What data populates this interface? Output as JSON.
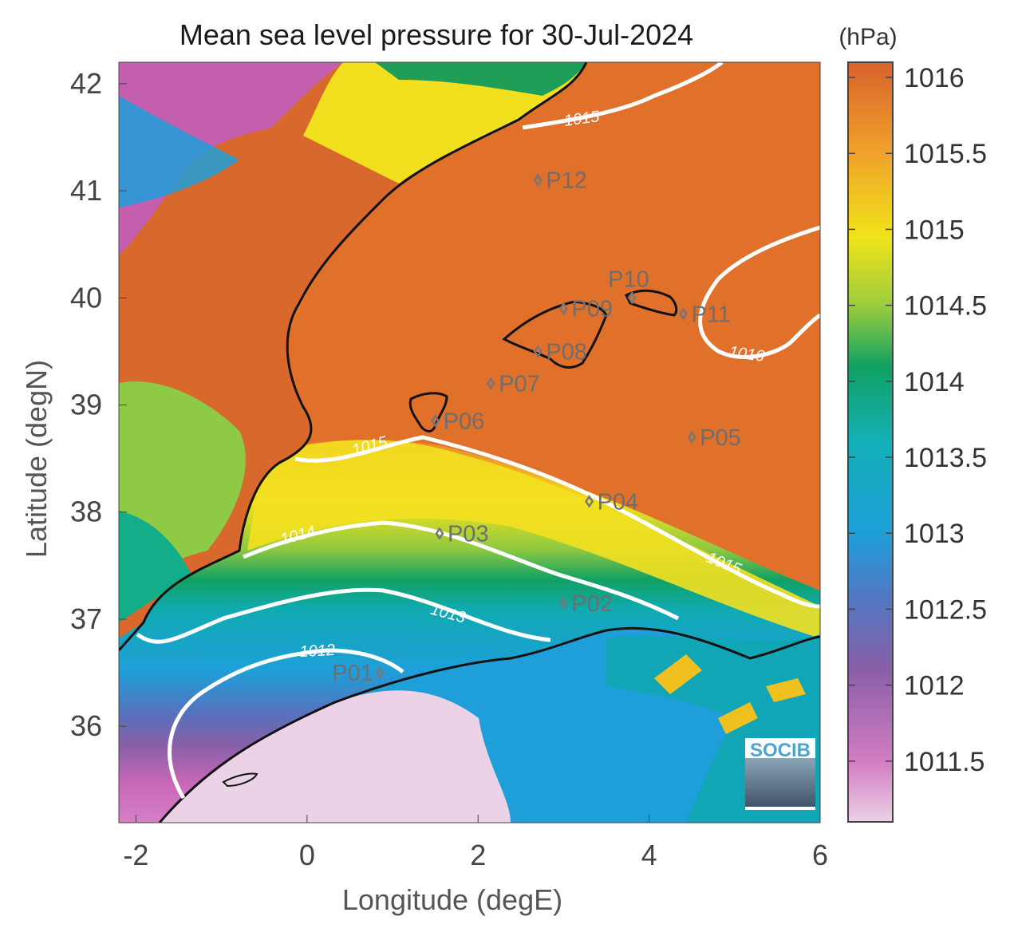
{
  "title": "Mean sea level pressure for 30-Jul-2024",
  "xlabel": "Longitude (degE)",
  "ylabel": "Latitude (degN)",
  "units": "(hPa)",
  "logo_text": "SOCIB",
  "colors": {
    "sea_orange": "#e0702a",
    "land_orange": "#d8682c",
    "yellow": "#f0e31a",
    "green": "#11a162",
    "teal": "#10aab2",
    "blue": "#1e9fd9",
    "purple": "#8a5fa8",
    "magenta": "#c968b8",
    "pink_light": "#ecd2e6",
    "contour": "#ffffff",
    "coast": "#111111",
    "station": "#777777"
  },
  "chart_data": {
    "type": "heatmap",
    "x_range": [
      -2.2,
      6.0
    ],
    "y_range": [
      35.1,
      42.2
    ],
    "x_ticks": [
      -2,
      0,
      2,
      4,
      6
    ],
    "y_ticks": [
      36,
      37,
      38,
      39,
      40,
      41,
      42
    ],
    "colorbar": {
      "label": "(hPa)",
      "range": [
        1011.1,
        1016.1
      ],
      "ticks": [
        1011.5,
        1012,
        1012.5,
        1013,
        1013.5,
        1014,
        1014.5,
        1015,
        1015.5,
        1016
      ]
    },
    "contour_labels": [
      {
        "text": "1015"
      },
      {
        "text": "1016"
      },
      {
        "text": "1015"
      },
      {
        "text": "1014"
      },
      {
        "text": "1015"
      },
      {
        "text": "1013"
      },
      {
        "text": "1012"
      }
    ],
    "stations": [
      {
        "name": "P01",
        "lon": 0.85,
        "lat": 36.5
      },
      {
        "name": "P02",
        "lon": 3.0,
        "lat": 37.15
      },
      {
        "name": "P03",
        "lon": 1.55,
        "lat": 37.8
      },
      {
        "name": "P04",
        "lon": 3.3,
        "lat": 38.1
      },
      {
        "name": "P05",
        "lon": 4.5,
        "lat": 38.7
      },
      {
        "name": "P06",
        "lon": 1.5,
        "lat": 38.85
      },
      {
        "name": "P07",
        "lon": 2.15,
        "lat": 39.2
      },
      {
        "name": "P08",
        "lon": 2.7,
        "lat": 39.5
      },
      {
        "name": "P09",
        "lon": 3.0,
        "lat": 39.9
      },
      {
        "name": "P10",
        "lon": 3.8,
        "lat": 40.0
      },
      {
        "name": "P11",
        "lon": 4.4,
        "lat": 39.85
      },
      {
        "name": "P12",
        "lon": 2.7,
        "lat": 41.1
      }
    ]
  }
}
